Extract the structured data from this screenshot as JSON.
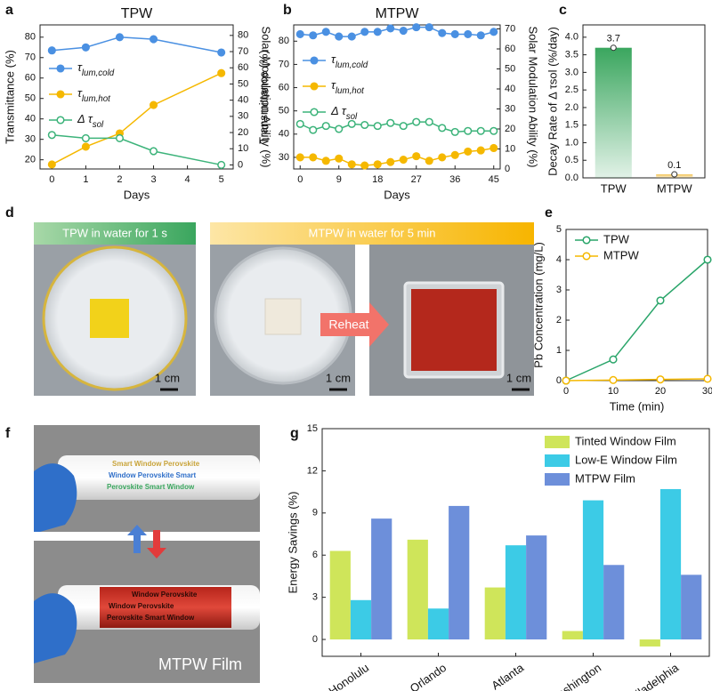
{
  "chart_data": [
    {
      "type": "line",
      "panel": "a",
      "title": "TPW",
      "xlabel": "Days",
      "ylabel": "Transmittance (%)",
      "y2label": "Solar Modulation Ability (%)",
      "x": [
        0,
        1,
        2,
        3,
        5
      ],
      "xlim": [
        -0.35,
        5.35
      ],
      "xticks": [
        0,
        1,
        2,
        3,
        4,
        5
      ],
      "ylim": [
        15.5,
        86
      ],
      "yticks": [
        20,
        30,
        40,
        50,
        60,
        70,
        80
      ],
      "y2lim": [
        -2.5,
        86.5
      ],
      "y2ticks": [
        0,
        10,
        20,
        30,
        40,
        50,
        60,
        70,
        80
      ],
      "series": [
        {
          "name": "τlum,cold",
          "color": "#4a90e2",
          "values": [
            73.5,
            75,
            80,
            79,
            72.5
          ]
        },
        {
          "name": "τlum,hot",
          "color": "#f5b800",
          "values": [
            17.7,
            26.4,
            32.9,
            46.8,
            62.4
          ]
        },
        {
          "name": "Δ τsol",
          "color": "#3cb37a",
          "hollow": true,
          "axis": "y2",
          "values": [
            18.5,
            16.5,
            16.5,
            8.5,
            0
          ]
        }
      ]
    },
    {
      "type": "line",
      "panel": "b",
      "title": "MTPW",
      "xlabel": "Days",
      "ylabel": "Transmittance (%)",
      "y2label": "Solar Modulation Ability (%)",
      "x": [
        0,
        3,
        6,
        9,
        12,
        15,
        18,
        21,
        24,
        27,
        30,
        33,
        36,
        39,
        42,
        45
      ],
      "xlim": [
        -1.5,
        46.5
      ],
      "xticks": [
        0,
        9,
        18,
        27,
        36,
        45
      ],
      "ylim": [
        25,
        87
      ],
      "yticks": [
        30,
        40,
        50,
        60,
        70,
        80
      ],
      "y2lim": [
        0,
        72
      ],
      "y2ticks": [
        0,
        10,
        20,
        30,
        40,
        50,
        60,
        70
      ],
      "series": [
        {
          "name": "τlum,cold",
          "color": "#4a90e2",
          "values": [
            83,
            82.5,
            84,
            82,
            82,
            84,
            84,
            85.5,
            84.5,
            86,
            86,
            83.5,
            83,
            83,
            82.5,
            84
          ]
        },
        {
          "name": "τlum,hot",
          "color": "#f5b800",
          "values": [
            30,
            30,
            28.5,
            29.5,
            27,
            26.5,
            27,
            28,
            29,
            30.5,
            28.5,
            30,
            31,
            32.5,
            33,
            34
          ]
        },
        {
          "name": "Δ τsol",
          "color": "#3cb37a",
          "hollow": true,
          "axis": "y2",
          "values": [
            22.5,
            19.5,
            21.5,
            20,
            22.5,
            22,
            21.5,
            23,
            21.5,
            23.5,
            23.5,
            20.5,
            18.5,
            19,
            19,
            19
          ]
        }
      ]
    },
    {
      "type": "bar",
      "panel": "c",
      "ylabel": "Decay Rate of Δ τsol (%/day)",
      "categories": [
        "TPW",
        "MTPW"
      ],
      "values": [
        3.7,
        0.1
      ],
      "colors": [
        "#3aa65e",
        "#f2c14e"
      ],
      "ylim": [
        0,
        4.35
      ],
      "yticks": [
        {
          "value": 0,
          "label": "0.0"
        },
        {
          "value": 0.5,
          "label": "0.5"
        },
        {
          "value": 1,
          "label": "1.0"
        },
        {
          "value": 1.5,
          "label": "1.5"
        },
        {
          "value": 2,
          "label": "2.0"
        },
        {
          "value": 2.5,
          "label": "2.5"
        },
        {
          "value": 3,
          "label": "3.0"
        },
        {
          "value": 3.5,
          "label": "3.5"
        },
        {
          "value": 4,
          "label": "4.0"
        }
      ]
    },
    {
      "type": "line",
      "panel": "e",
      "xlabel": "Time (min)",
      "ylabel": "Pb Concentration (mg/L)",
      "x": [
        0,
        10,
        20,
        30
      ],
      "xlim": [
        0,
        30
      ],
      "xticks": [
        0,
        10,
        20,
        30
      ],
      "ylim": [
        0,
        5
      ],
      "yticks": [
        0,
        1,
        2,
        3,
        4,
        5
      ],
      "series": [
        {
          "name": "TPW",
          "color": "#2aa56a",
          "hollow": true,
          "values": [
            0,
            0.7,
            2.65,
            4.0
          ]
        },
        {
          "name": "MTPW",
          "color": "#f5b800",
          "hollow": true,
          "values": [
            0,
            0.02,
            0.04,
            0.06
          ]
        }
      ]
    },
    {
      "type": "grouped-bar",
      "panel": "g",
      "ylabel": "Energy Savings (%)",
      "categories": [
        "Honolulu",
        "Orlando",
        "Atlanta",
        "Washington",
        "Philadelphia"
      ],
      "ylim": [
        -1.2,
        15
      ],
      "yticks": [
        0,
        3,
        6,
        9,
        12,
        15
      ],
      "series": [
        {
          "name": "Tinted Window Film",
          "color": "#cfe55a",
          "values": [
            6.3,
            7.1,
            3.7,
            0.6,
            -0.5
          ]
        },
        {
          "name": "Low-E Window Film",
          "color": "#3ccbe6",
          "values": [
            2.8,
            2.2,
            6.7,
            9.9,
            10.7
          ]
        },
        {
          "name": "MTPW Film",
          "color": "#6d8fda",
          "values": [
            8.6,
            9.5,
            7.4,
            5.3,
            4.6
          ]
        }
      ]
    }
  ],
  "panel_d": {
    "label": "d",
    "captions": [
      "TPW in water for 1 s",
      "MTPW in water for 5 min"
    ],
    "arrow": "Reheat",
    "scale_bars": [
      "1 cm",
      "1 cm",
      "1 cm"
    ]
  },
  "panel_f": {
    "label": "f",
    "roll_top": [
      "Smart Window Perovskite",
      "Window Perovskite Smart",
      "Perovskite Smart Window"
    ],
    "roll_bottom": [
      "Window Perovskite",
      "Window Perovskite",
      "Perovskite Smart Window"
    ],
    "caption": "MTPW Film"
  }
}
